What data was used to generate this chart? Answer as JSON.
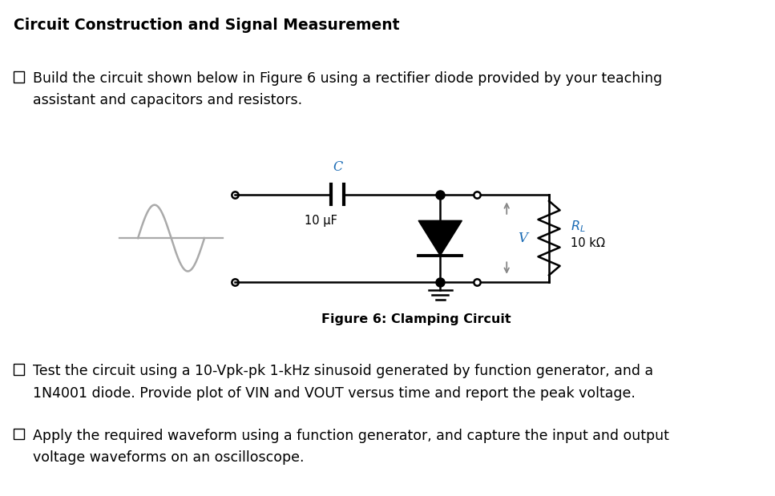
{
  "title": "Circuit Construction and Signal Measurement",
  "bullet1_line1": "Build the circuit shown below in Figure 6 using a rectifier diode provided by your teaching",
  "bullet1_line2": "assistant and capacitors and resistors.",
  "bullet2_line1": "Test the circuit using a 10-Vpk-pk 1-kHz sinusoid generated by function generator, and a",
  "bullet2_line2": "1N4001 diode. Provide plot of VIN and VOUT versus time and report the peak voltage.",
  "bullet3_line1": "Apply the required waveform using a function generator, and capture the input and output",
  "bullet3_line2": "voltage waveforms on an oscilloscope.",
  "fig_caption": "Figure 6: Clamping Circuit",
  "background": "#ffffff",
  "text_color": "#000000",
  "circuit_color": "#000000",
  "sine_color": "#aaaaaa",
  "label_color": "#1a6bb5",
  "title_fontsize": 13.5,
  "body_fontsize": 12.5,
  "caption_fontsize": 11.5,
  "circuit_label_fontsize": 10.5
}
